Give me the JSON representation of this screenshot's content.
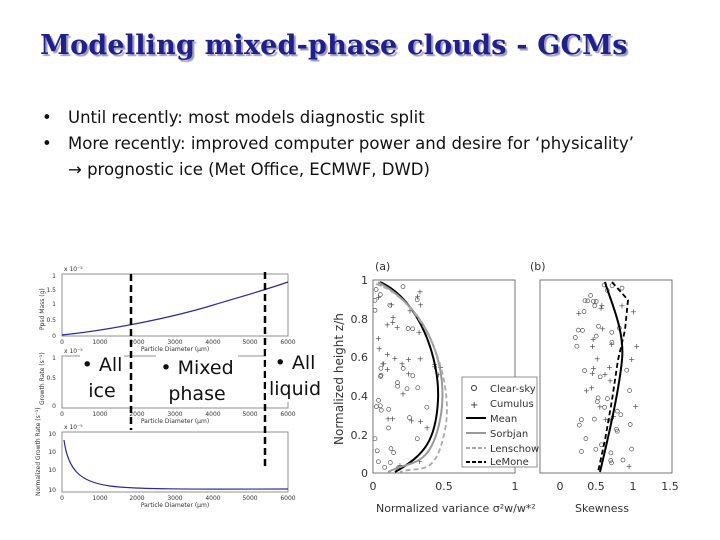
{
  "title": "Modelling mixed-phase clouds - GCMs",
  "bullets": [
    "Until recently: most models diagnostic split",
    "More recently: improved computer power and desire for ‘physicality’"
  ],
  "sub_bullet_arrow": "→",
  "sub_bullet_text": "prognostic ice (Met Office, ECMWF, DWD)",
  "zones": {
    "ice": [
      "• All",
      "ice"
    ],
    "mixed": [
      "• Mixed",
      "phase"
    ],
    "liquid": [
      "• All",
      "liquid"
    ]
  },
  "left_fig": {
    "panels": [
      {
        "ylabel": "Ppsd Mass (g)",
        "exp": "x 10⁻⁵"
      },
      {
        "ylabel": "Growth Rate (s⁻¹)",
        "exp": "x 10⁻⁵"
      },
      {
        "ylabel": "Normalized Growth Rate (s⁻¹)",
        "exp": "x 10⁻⁵"
      }
    ],
    "xlabel": "Particle Diameter (μm)",
    "xticks": [
      "0",
      "1000",
      "2000",
      "3000",
      "4000",
      "5000",
      "6000"
    ]
  },
  "right_fig": {
    "panel_a_label": "(a)",
    "panel_b_label": "(b)",
    "ylabel": "Normalized height z/h",
    "yticks": [
      "0",
      "0.2",
      "0.4",
      "0.6",
      "0.8",
      "1"
    ],
    "a_xticks": [
      "0",
      "0.5",
      "1"
    ],
    "b_xticks": [
      "0",
      "0.5",
      "1",
      "1.5"
    ],
    "a_xlabel": "Normalized variance σ²w/w*²",
    "b_xlabel": "Skewness",
    "legend": [
      {
        "label": "Clear-sky",
        "style": "circle"
      },
      {
        "label": "Cumulus",
        "style": "plus"
      },
      {
        "label": "Mean",
        "style": "solid-black"
      },
      {
        "label": "Sorbjan",
        "style": "solid-grey"
      },
      {
        "label": "Lenschow",
        "style": "dashed-grey"
      },
      {
        "label": "LeMone",
        "style": "dashed-black"
      }
    ]
  },
  "colors": {
    "title": "#1f1f8f",
    "curve": "#2a2aa0",
    "divider": "#000000"
  }
}
